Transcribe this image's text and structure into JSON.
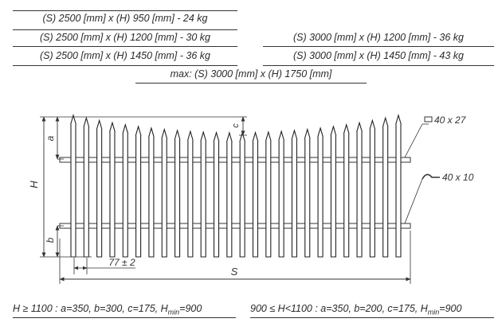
{
  "specs_left": [
    "(S) 2500 [mm] x (H) 950 [mm]   -  24 kg",
    "(S) 2500 [mm] x (H) 1200 [mm]  -  30 kg",
    "(S) 2500 [mm] x (H) 1450 [mm]  -  36 kg"
  ],
  "specs_right": [
    "(S) 3000 [mm] x (H) 1200 [mm]  -  36 kg",
    "(S) 3000 [mm] x (H) 1450 [mm]  -  43 kg"
  ],
  "max_spec": "max: (S) 3000 [mm] x (H) 1750 [mm]",
  "labels": {
    "a": "a",
    "b": "b",
    "c": "c",
    "H": "H",
    "S": "S",
    "spacing": "77 ± 2",
    "rail_top": "40 x 27",
    "rail_bottom": "40 x 10"
  },
  "formulas": {
    "left": {
      "main": "H ≥ 1100 : a=350, b=300, c=175, H",
      "sub": "min",
      "tail": "=900"
    },
    "right": {
      "main": "900 ≤ H<1100 : a=350, b=200, c=175, H",
      "sub": "min",
      "tail": "=900"
    }
  }
}
